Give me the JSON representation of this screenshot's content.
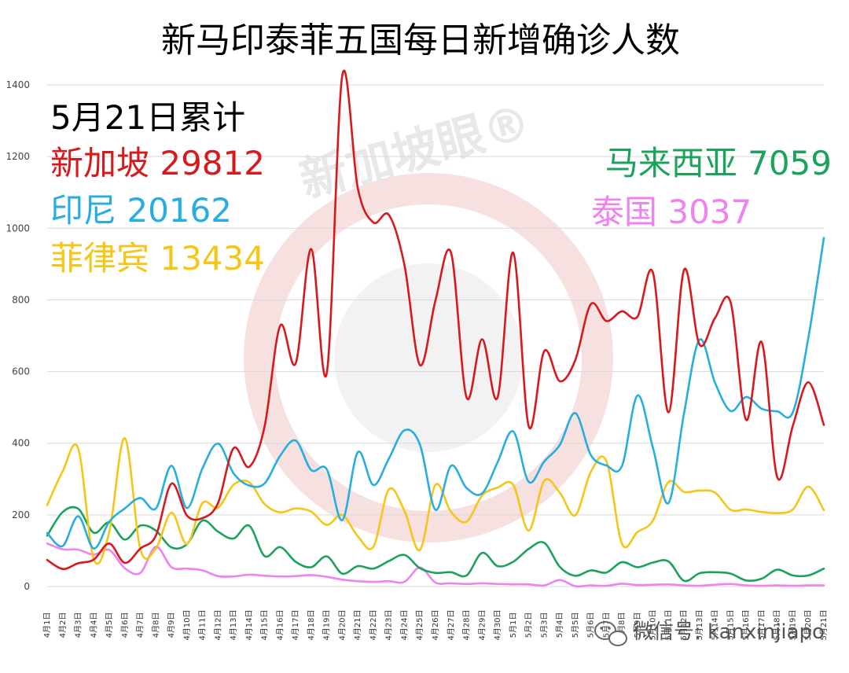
{
  "colors": {
    "singapore": "#d7191c",
    "indonesia": "#27aee0",
    "philippines": "#f5c518",
    "malaysia": "#1aa35a",
    "thailand": "#ee82ee",
    "grid": "#d9d9d9",
    "watermark": "#f5dede"
  },
  "watermark": {
    "text": "新加坡眼®"
  },
  "credit": {
    "icon": "wechat-icon",
    "text": "微信号: kanxinjiapo"
  },
  "totals": {
    "heading": "5月21日累计",
    "items": [
      {
        "label": "新加坡 29812",
        "color": "#d7191c"
      },
      {
        "label": "印尼 20162",
        "color": "#27aee0"
      },
      {
        "label": "菲律宾 13434",
        "color": "#f5c518"
      },
      {
        "label": "马来西亚 7059",
        "color": "#1aa35a"
      },
      {
        "label": "泰国 3037",
        "color": "#ee82ee"
      }
    ]
  },
  "chart_data": {
    "type": "line",
    "title": "新马印泰菲五国每日新增确诊人数",
    "xlabel": "",
    "ylabel": "",
    "ylim": [
      0,
      1400
    ],
    "yticks": [
      0,
      200,
      400,
      600,
      800,
      1000,
      1200,
      1400
    ],
    "grid": true,
    "categories": [
      "4月1日",
      "4月2日",
      "4月3日",
      "4月4日",
      "4月5日",
      "4月6日",
      "4月7日",
      "4月8日",
      "4月9日",
      "4月10日",
      "4月11日",
      "4月12日",
      "4月13日",
      "4月14日",
      "4月15日",
      "4月16日",
      "4月17日",
      "4月18日",
      "4月19日",
      "4月20日",
      "4月21日",
      "4月22日",
      "4月23日",
      "4月24日",
      "4月25日",
      "4月26日",
      "4月27日",
      "4月28日",
      "4月29日",
      "4月30日",
      "5月1日",
      "5月2日",
      "5月3日",
      "5月4日",
      "5月5日",
      "5月6日",
      "5月7日",
      "5月8日",
      "5月9日",
      "5月10日",
      "5月11日",
      "5月12日",
      "5月13日",
      "5月14日",
      "5月15日",
      "5月16日",
      "5月17日",
      "5月18日",
      "5月19日",
      "5月20日",
      "5月21日"
    ],
    "series": [
      {
        "key": "singapore",
        "color": "#d7191c",
        "values": [
          74,
          49,
          65,
          75,
          120,
          66,
          106,
          142,
          287,
          198,
          191,
          233,
          386,
          334,
          447,
          728,
          623,
          942,
          596,
          1426,
          1111,
          1016,
          1037,
          897,
          618,
          799,
          931,
          528,
          690,
          528,
          932,
          447,
          657,
          573,
          632,
          788,
          741,
          768,
          753,
          876,
          486,
          884,
          675,
          750,
          793,
          465,
          682,
          305,
          448,
          570,
          451
        ]
      },
      {
        "key": "indonesia",
        "color": "#27aee0",
        "values": [
          149,
          113,
          196,
          106,
          181,
          218,
          247,
          218,
          337,
          219,
          330,
          399,
          316,
          282,
          288,
          365,
          407,
          325,
          327,
          185,
          375,
          283,
          357,
          436,
          396,
          214,
          337,
          275,
          260,
          347,
          433,
          292,
          349,
          395,
          484,
          367,
          338,
          336,
          533,
          387,
          233,
          484,
          689,
          568,
          490,
          529,
          496,
          489,
          486,
          693,
          973
        ]
      },
      {
        "key": "philippines",
        "color": "#f5c518",
        "values": [
          227,
          322,
          385,
          76,
          152,
          414,
          104,
          106,
          206,
          119,
          233,
          220,
          284,
          291,
          230,
          207,
          218,
          209,
          172,
          200,
          140,
          111,
          271,
          211,
          102,
          284,
          208,
          181,
          254,
          276,
          284,
          156,
          295,
          262,
          199,
          320,
          350,
          120,
          152,
          184,
          292,
          264,
          268,
          262,
          214,
          215,
          208,
          205,
          215,
          279,
          213
        ]
      },
      {
        "key": "malaysia",
        "color": "#1aa35a",
        "values": [
          142,
          208,
          217,
          150,
          179,
          131,
          170,
          156,
          109,
          118,
          184,
          153,
          134,
          170,
          85,
          110,
          69,
          54,
          84,
          36,
          57,
          50,
          71,
          88,
          51,
          38,
          40,
          31,
          94,
          57,
          69,
          105,
          122,
          55,
          30,
          45,
          39,
          68,
          54,
          67,
          70,
          16,
          37,
          40,
          36,
          17,
          22,
          47,
          31,
          31,
          50
        ]
      },
      {
        "key": "thailand",
        "color": "#ee82ee",
        "values": [
          120,
          104,
          103,
          89,
          102,
          51,
          38,
          111,
          54,
          50,
          45,
          29,
          28,
          33,
          30,
          28,
          29,
          32,
          27,
          19,
          15,
          13,
          15,
          13,
          53,
          11,
          9,
          7,
          9,
          7,
          6,
          6,
          3,
          18,
          1,
          3,
          2,
          8,
          4,
          5,
          6,
          3,
          2,
          5,
          7,
          3,
          2,
          3,
          2,
          3,
          3
        ]
      }
    ]
  }
}
